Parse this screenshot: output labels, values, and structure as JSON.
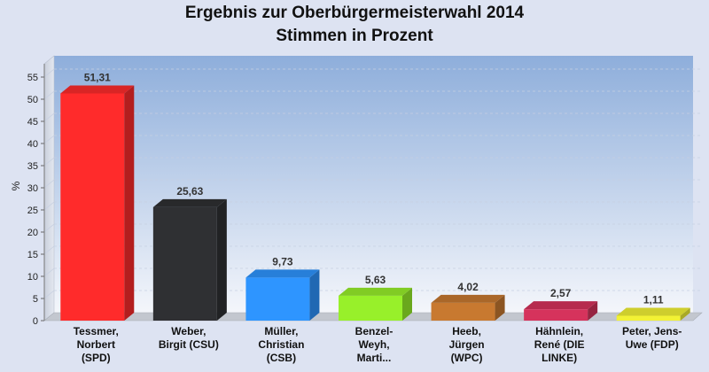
{
  "chart_data": {
    "type": "bar",
    "title": [
      "Ergebnis zur Oberbürgermeisterwahl 2014",
      "Stimmen in Prozent"
    ],
    "ylabel": "%",
    "ylim": [
      0,
      58
    ],
    "yticks": [
      0,
      5,
      10,
      15,
      20,
      25,
      30,
      35,
      40,
      45,
      50,
      55
    ],
    "grid": true,
    "categories": [
      [
        "Tessmer,",
        "Norbert",
        "(SPD)"
      ],
      [
        "Weber,",
        "Birgit (CSU)"
      ],
      [
        "Müller,",
        "Christian",
        "(CSB)"
      ],
      [
        "Benzel-",
        "Weyh,",
        "Marti..."
      ],
      [
        "Heeb,",
        "Jürgen",
        "(WPC)"
      ],
      [
        "Hähnlein,",
        "René (DIE",
        "LINKE)"
      ],
      [
        "Peter, Jens-",
        "Uwe (FDP)"
      ]
    ],
    "values": [
      51.31,
      25.63,
      9.73,
      5.63,
      4.02,
      2.57,
      1.11
    ],
    "value_labels": [
      "51,31",
      "25,63",
      "9,73",
      "5,63",
      "4,02",
      "2,57",
      "1,11"
    ],
    "colors": [
      "#ff2b2b",
      "#2f3033",
      "#2e95ff",
      "#98f02a",
      "#c87930",
      "#d6335c",
      "#f2f235"
    ]
  }
}
